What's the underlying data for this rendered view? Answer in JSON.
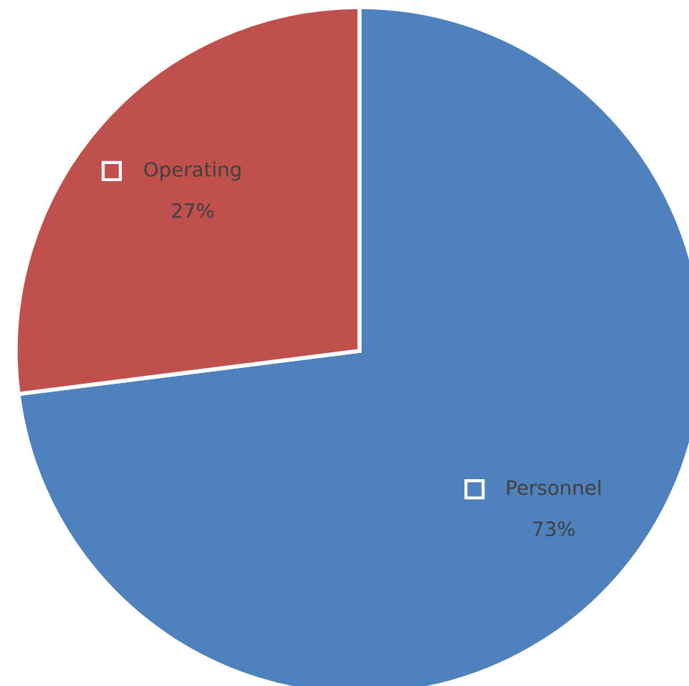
{
  "chart_data": {
    "type": "pie",
    "categories": [
      "Personnel",
      "Operating"
    ],
    "values": [
      73,
      27
    ],
    "colors": [
      "#4f81bd",
      "#c0504d"
    ],
    "value_labels": [
      "73%",
      "27%"
    ],
    "legend": "center"
  }
}
